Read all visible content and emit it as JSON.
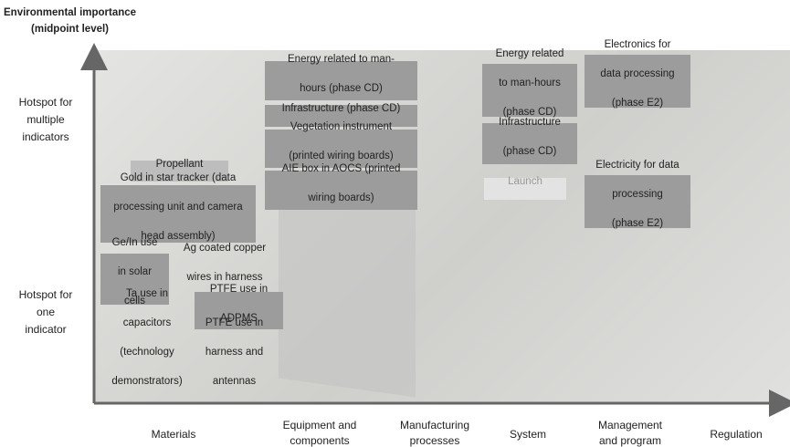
{
  "y_axis": {
    "title": [
      "Environmental importance",
      "(midpoint level)"
    ],
    "levels": [
      [
        "Hotspot for",
        "multiple",
        "indicators"
      ],
      [
        "Hotspot for",
        "one",
        "indicator"
      ]
    ]
  },
  "x_axis": {
    "categories": [
      [
        "Materials"
      ],
      [
        "Equipment and",
        "components"
      ],
      [
        "Manufacturing",
        "processes"
      ],
      [
        "System"
      ],
      [
        "Management",
        "and program"
      ],
      [
        "Regulation"
      ]
    ]
  },
  "boxes": [
    {
      "lines": [
        "Energy related to man-",
        "hours (phase CD)"
      ]
    },
    {
      "lines": [
        "Infrastructure (phase CD)"
      ]
    },
    {
      "lines": [
        "Vegetation instrument",
        "(printed wiring boards)"
      ]
    },
    {
      "lines": [
        "AIE box in AOCS (printed",
        "wiring boards)"
      ]
    },
    {
      "lines": [
        "Energy related",
        "to man-hours",
        "(phase CD)"
      ]
    },
    {
      "lines": [
        "Infrastructure",
        "(phase CD)"
      ]
    },
    {
      "lines": [
        "Electronics for",
        "data processing",
        "(phase E2)"
      ]
    },
    {
      "lines": [
        "Propellant"
      ]
    },
    {
      "lines": [
        "Gold in star tracker (data",
        "processing unit and camera",
        "head assembly)"
      ]
    },
    {
      "lines": [
        "Launch"
      ]
    },
    {
      "lines": [
        "Electricity for  data",
        "processing",
        "(phase E2)"
      ]
    },
    {
      "lines": [
        "Ge/In use",
        "in solar",
        "cells"
      ]
    },
    {
      "lines": [
        "Ag coated copper",
        "wires in harness"
      ]
    },
    {
      "lines": [
        "PTFE use in",
        "ADPMS"
      ]
    },
    {
      "lines": [
        "Ta use in",
        "capacitors",
        "(technology",
        "demonstrators)"
      ]
    },
    {
      "lines": [
        "PTFE use in",
        "harness and",
        "antennas"
      ]
    }
  ]
}
